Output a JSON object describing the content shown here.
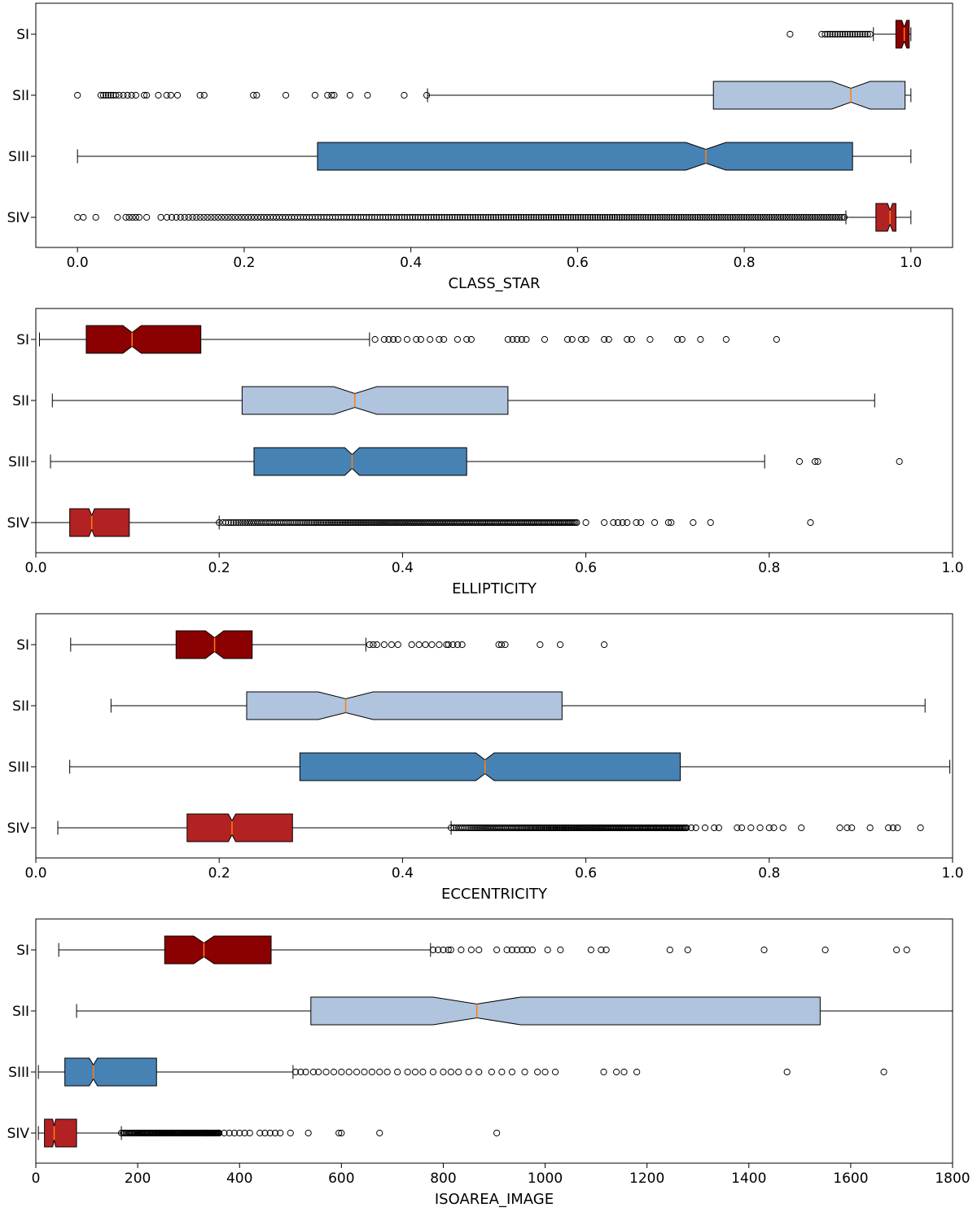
{
  "chart_data": [
    {
      "type": "boxplot",
      "orientation": "horizontal",
      "notched": true,
      "xlabel": "CLASS_STAR",
      "xlim": [
        -0.05,
        1.05
      ],
      "xticks": [
        0.0,
        0.2,
        0.4,
        0.6,
        0.8,
        1.0
      ],
      "xtick_labels": [
        "0.0",
        "0.2",
        "0.4",
        "0.6",
        "0.8",
        "1.0"
      ],
      "categories": [
        "SI",
        "SII",
        "SIII",
        "SIV"
      ],
      "series": [
        {
          "name": "SI",
          "color": "#8b0000",
          "whisker_low": 0.955,
          "q1": 0.982,
          "median": 0.992,
          "q3": 0.998,
          "whisker_high": 1.0,
          "notch_low": 0.989,
          "notch_high": 0.995,
          "fliers": [
            0.855,
            0.893,
            0.897,
            0.9,
            0.903,
            0.906,
            0.909,
            0.912,
            0.915,
            0.918,
            0.921,
            0.924,
            0.927,
            0.93,
            0.933,
            0.936,
            0.939,
            0.942,
            0.945,
            0.948,
            0.951
          ]
        },
        {
          "name": "SII",
          "color": "#b0c4de",
          "whisker_low": 0.42,
          "q1": 0.763,
          "median": 0.928,
          "q3": 0.993,
          "whisker_high": 1.0,
          "notch_low": 0.905,
          "notch_high": 0.951,
          "fliers": [
            0.0,
            0.028,
            0.031,
            0.034,
            0.037,
            0.04,
            0.043,
            0.046,
            0.05,
            0.055,
            0.06,
            0.065,
            0.07,
            0.08,
            0.083,
            0.097,
            0.107,
            0.112,
            0.12,
            0.147,
            0.152,
            0.211,
            0.215,
            0.25,
            0.285,
            0.3,
            0.305,
            0.308,
            0.327,
            0.348,
            0.392,
            0.419
          ]
        },
        {
          "name": "SIII",
          "color": "#4682b4",
          "whisker_low": 0.0,
          "q1": 0.288,
          "median": 0.754,
          "q3": 0.93,
          "whisker_high": 1.0,
          "notch_low": 0.73,
          "notch_high": 0.778,
          "fliers": []
        },
        {
          "name": "SIV",
          "color": "#b22222",
          "whisker_low": 0.922,
          "q1": 0.958,
          "median": 0.975,
          "q3": 0.982,
          "whisker_high": 1.0,
          "notch_low": 0.972,
          "notch_high": 0.978,
          "flier_values": [
            0.0,
            0.007,
            0.022,
            0.048,
            0.058,
            0.062,
            0.066,
            0.07,
            0.074,
            0.083
          ],
          "flier_band": {
            "from": 0.1,
            "to": 0.92,
            "count": 260
          }
        }
      ]
    },
    {
      "type": "boxplot",
      "orientation": "horizontal",
      "notched": true,
      "xlabel": "ELLIPTICITY",
      "xlim": [
        0.0,
        1.0
      ],
      "xticks": [
        0.0,
        0.2,
        0.4,
        0.6,
        0.8,
        1.0
      ],
      "xtick_labels": [
        "0.0",
        "0.2",
        "0.4",
        "0.6",
        "0.8",
        "1.0"
      ],
      "categories": [
        "SI",
        "SII",
        "SIII",
        "SIV"
      ],
      "series": [
        {
          "name": "SI",
          "color": "#8b0000",
          "whisker_low": 0.004,
          "q1": 0.055,
          "median": 0.105,
          "q3": 0.18,
          "whisker_high": 0.364,
          "notch_low": 0.095,
          "notch_high": 0.115,
          "fliers": [
            0.37,
            0.38,
            0.385,
            0.39,
            0.395,
            0.405,
            0.415,
            0.42,
            0.43,
            0.44,
            0.445,
            0.46,
            0.47,
            0.475,
            0.515,
            0.52,
            0.525,
            0.53,
            0.535,
            0.555,
            0.58,
            0.585,
            0.595,
            0.6,
            0.62,
            0.625,
            0.645,
            0.65,
            0.67,
            0.7,
            0.705,
            0.725,
            0.753,
            0.808
          ]
        },
        {
          "name": "SII",
          "color": "#b0c4de",
          "whisker_low": 0.018,
          "q1": 0.225,
          "median": 0.348,
          "q3": 0.515,
          "whisker_high": 0.915,
          "notch_low": 0.325,
          "notch_high": 0.372,
          "fliers": []
        },
        {
          "name": "SIII",
          "color": "#4682b4",
          "whisker_low": 0.016,
          "q1": 0.238,
          "median": 0.345,
          "q3": 0.47,
          "whisker_high": 0.795,
          "notch_low": 0.337,
          "notch_high": 0.353,
          "fliers": [
            0.833,
            0.85,
            0.853,
            0.942
          ]
        },
        {
          "name": "SIV",
          "color": "#b22222",
          "whisker_low": 0.0,
          "q1": 0.037,
          "median": 0.061,
          "q3": 0.102,
          "whisker_high": 0.2,
          "notch_low": 0.058,
          "notch_high": 0.064,
          "flier_values": [
            0.6,
            0.62,
            0.63,
            0.635,
            0.64,
            0.645,
            0.655,
            0.66,
            0.675,
            0.69,
            0.693,
            0.717,
            0.736,
            0.845
          ],
          "flier_band": {
            "from": 0.2,
            "to": 0.59,
            "count": 220
          }
        }
      ]
    },
    {
      "type": "boxplot",
      "orientation": "horizontal",
      "notched": true,
      "xlabel": "ECCENTRICITY",
      "xlim": [
        0.0,
        1.0
      ],
      "xticks": [
        0.0,
        0.2,
        0.4,
        0.6,
        0.8,
        1.0
      ],
      "xtick_labels": [
        "0.0",
        "0.2",
        "0.4",
        "0.6",
        "0.8",
        "1.0"
      ],
      "categories": [
        "SI",
        "SII",
        "SIII",
        "SIV"
      ],
      "series": [
        {
          "name": "SI",
          "color": "#8b0000",
          "whisker_low": 0.038,
          "q1": 0.153,
          "median": 0.195,
          "q3": 0.236,
          "whisker_high": 0.36,
          "notch_low": 0.185,
          "notch_high": 0.205,
          "fliers": [
            0.364,
            0.368,
            0.372,
            0.38,
            0.388,
            0.395,
            0.41,
            0.418,
            0.425,
            0.432,
            0.44,
            0.448,
            0.45,
            0.455,
            0.46,
            0.465,
            0.505,
            0.508,
            0.512,
            0.55,
            0.572,
            0.62
          ]
        },
        {
          "name": "SII",
          "color": "#b0c4de",
          "whisker_low": 0.082,
          "q1": 0.23,
          "median": 0.338,
          "q3": 0.574,
          "whisker_high": 0.97,
          "notch_low": 0.308,
          "notch_high": 0.368,
          "fliers": []
        },
        {
          "name": "SIII",
          "color": "#4682b4",
          "whisker_low": 0.037,
          "q1": 0.288,
          "median": 0.49,
          "q3": 0.703,
          "whisker_high": 0.997,
          "notch_low": 0.48,
          "notch_high": 0.5,
          "fliers": []
        },
        {
          "name": "SIV",
          "color": "#b22222",
          "whisker_low": 0.024,
          "q1": 0.165,
          "median": 0.214,
          "q3": 0.28,
          "whisker_high": 0.453,
          "notch_low": 0.21,
          "notch_high": 0.218,
          "flier_values": [
            0.715,
            0.72,
            0.73,
            0.74,
            0.745,
            0.765,
            0.77,
            0.78,
            0.79,
            0.8,
            0.805,
            0.815,
            0.835,
            0.877,
            0.885,
            0.89,
            0.91,
            0.93,
            0.935,
            0.94,
            0.965
          ],
          "flier_band": {
            "from": 0.453,
            "to": 0.71,
            "count": 180
          }
        }
      ]
    },
    {
      "type": "boxplot",
      "orientation": "horizontal",
      "notched": true,
      "xlabel": "ISOAREA_IMAGE",
      "xlim": [
        0,
        1800
      ],
      "xticks": [
        0,
        200,
        400,
        600,
        800,
        1000,
        1200,
        1400,
        1600,
        1800
      ],
      "xtick_labels": [
        "0",
        "200",
        "400",
        "600",
        "800",
        "1000",
        "1200",
        "1400",
        "1600",
        "1800"
      ],
      "categories": [
        "SI",
        "SII",
        "SIII",
        "SIV"
      ],
      "series": [
        {
          "name": "SI",
          "color": "#8b0000",
          "whisker_low": 45,
          "q1": 253,
          "median": 330,
          "q3": 462,
          "whisker_high": 775,
          "notch_low": 310,
          "notch_high": 350,
          "fliers": [
            780,
            790,
            800,
            810,
            815,
            835,
            855,
            870,
            905,
            925,
            935,
            945,
            955,
            965,
            975,
            1005,
            1030,
            1090,
            1110,
            1120,
            1245,
            1280,
            1430,
            1550,
            1690,
            1710
          ]
        },
        {
          "name": "SII",
          "color": "#b0c4de",
          "whisker_low": 80,
          "q1": 540,
          "median": 866,
          "q3": 1540,
          "whisker_high": 1800,
          "notch_low": 780,
          "notch_high": 952,
          "fliers": []
        },
        {
          "name": "SIII",
          "color": "#4682b4",
          "whisker_low": 5,
          "q1": 57,
          "median": 113,
          "q3": 237,
          "whisker_high": 505,
          "notch_low": 105,
          "notch_high": 121,
          "fliers": [
            510,
            520,
            530,
            545,
            555,
            570,
            585,
            600,
            615,
            630,
            645,
            660,
            675,
            690,
            710,
            730,
            745,
            760,
            780,
            800,
            815,
            830,
            850,
            870,
            895,
            915,
            935,
            960,
            985,
            1000,
            1020,
            1115,
            1140,
            1155,
            1180,
            1475,
            1665
          ]
        },
        {
          "name": "SIV",
          "color": "#b22222",
          "whisker_low": 5,
          "q1": 17,
          "median": 36,
          "q3": 80,
          "whisker_high": 168,
          "notch_low": 33,
          "notch_high": 39,
          "flier_values": [
            370,
            380,
            390,
            400,
            410,
            420,
            440,
            450,
            460,
            470,
            480,
            500,
            535,
            595,
            600,
            675,
            905
          ],
          "flier_band": {
            "from": 168,
            "to": 360,
            "count": 110
          }
        }
      ]
    }
  ]
}
